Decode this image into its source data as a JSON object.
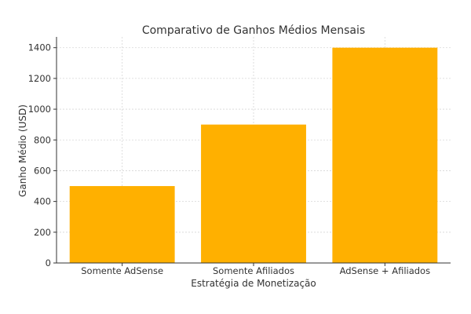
{
  "chart_data": {
    "type": "bar",
    "title": "Comparativo de Ganhos Médios Mensais",
    "xlabel": "Estratégia de Monetização",
    "ylabel": "Ganho Médio (USD)",
    "categories": [
      "Somente AdSense",
      "Somente Afiliados",
      "AdSense + Afiliados"
    ],
    "values": [
      500,
      900,
      1400
    ],
    "ylim": [
      0,
      1470
    ],
    "yticks": [
      0,
      200,
      400,
      600,
      800,
      1000,
      1200,
      1400
    ],
    "grid": true,
    "bar_color": "#FFB000"
  }
}
